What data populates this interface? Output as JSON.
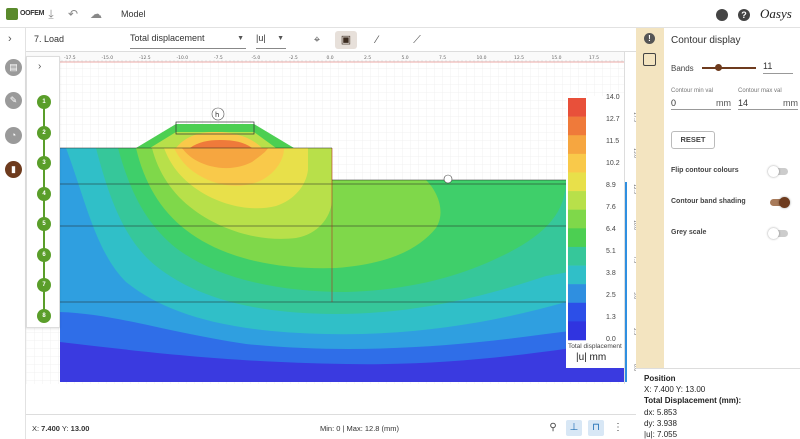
{
  "app": {
    "logo_text": "OOFEM",
    "model_tab": "Model",
    "brand": "Oasys"
  },
  "toolbar": {
    "stage": "7. Load",
    "result_type": "Total displacement",
    "component": "|u|"
  },
  "stages": [
    "1",
    "2",
    "3",
    "4",
    "5",
    "6",
    "7",
    "8"
  ],
  "legend": {
    "title": "Total displacement",
    "unit": "|u| mm",
    "ticks": [
      "14.0",
      "12.7",
      "11.5",
      "10.2",
      "8.9",
      "7.6",
      "6.4",
      "5.1",
      "3.8",
      "2.5",
      "1.3",
      "0.0"
    ],
    "colors": [
      "#e8503a",
      "#ef7a3a",
      "#f6a640",
      "#f9c94a",
      "#e8e04a",
      "#b8e04a",
      "#7fd84a",
      "#4ccf52",
      "#36c79a",
      "#30bfc8",
      "#2f8fe0",
      "#2c4fe8",
      "#3034e0"
    ]
  },
  "ruler": {
    "x_ticks": [
      "-17.5",
      "-15.0",
      "-12.5",
      "-10.0",
      "-7.5",
      "-5.0",
      "-2.5",
      "0.0",
      "2.5",
      "5.0",
      "7.5",
      "10.0",
      "12.5",
      "15.0",
      "17.5"
    ],
    "y_ticks": [
      "17.5",
      "15.0",
      "12.5",
      "10.0",
      "7.5",
      "5.0",
      "2.5",
      "0.0"
    ]
  },
  "contour_panel": {
    "title": "Contour display",
    "bands_label": "Bands",
    "bands_value": "11",
    "bands_fraction": 0.3,
    "min_label": "Contour min val",
    "min_value": "0",
    "max_label": "Contour max val",
    "max_value": "14",
    "unit": "mm",
    "reset_label": "RESET",
    "flip_label": "Flip contour colours",
    "flip_on": false,
    "shading_label": "Contour band shading",
    "shading_on": true,
    "grey_label": "Grey scale",
    "grey_on": false
  },
  "position": {
    "title": "Position",
    "xy": "X: 7.400 Y: 13.00",
    "disp_title": "Total Displacement (mm):",
    "dx": "dx: 5.853",
    "dy": "dy: 3.938",
    "u": "|u|: 7.055"
  },
  "status": {
    "coord_x_label": "X: ",
    "coord_x": "7.400",
    "coord_y_label": " Y: ",
    "coord_y": "13.00",
    "minmax": "Min: 0 | Max: 12.8 (mm)"
  }
}
